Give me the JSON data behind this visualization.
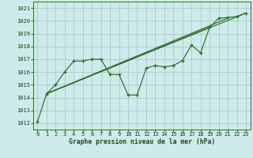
{
  "xlabel": "Graphe pression niveau de la mer (hPa)",
  "bg_color": "#ceeaea",
  "grid_color": "#aacece",
  "line_color": "#2d6e2d",
  "marker_color": "#2d6e2d",
  "xlim": [
    -0.5,
    23.5
  ],
  "ylim": [
    1011.5,
    1021.5
  ],
  "yticks": [
    1012,
    1013,
    1014,
    1015,
    1016,
    1017,
    1018,
    1019,
    1020,
    1021
  ],
  "xticks": [
    0,
    1,
    2,
    3,
    4,
    5,
    6,
    7,
    8,
    9,
    10,
    11,
    12,
    13,
    14,
    15,
    16,
    17,
    18,
    19,
    20,
    21,
    22,
    23
  ],
  "main_x": [
    0,
    1,
    2,
    3,
    4,
    5,
    6,
    7,
    8,
    9,
    10,
    11,
    12,
    13,
    14,
    15,
    16,
    17,
    18,
    19,
    20,
    21,
    22,
    23
  ],
  "main_y": [
    1012.1,
    1014.3,
    1015.0,
    1016.0,
    1016.85,
    1016.85,
    1017.0,
    1017.0,
    1015.8,
    1015.8,
    1014.2,
    1014.2,
    1016.3,
    1016.5,
    1016.4,
    1016.5,
    1016.9,
    1018.1,
    1017.5,
    1019.5,
    1020.2,
    1020.25,
    1020.35,
    1020.6
  ],
  "trend1_x": [
    1,
    19
  ],
  "trend1_y": [
    1014.3,
    1019.5
  ],
  "trend2_x": [
    1,
    21
  ],
  "trend2_y": [
    1014.3,
    1020.2
  ],
  "trend3_x": [
    1,
    23
  ],
  "trend3_y": [
    1014.3,
    1020.6
  ]
}
